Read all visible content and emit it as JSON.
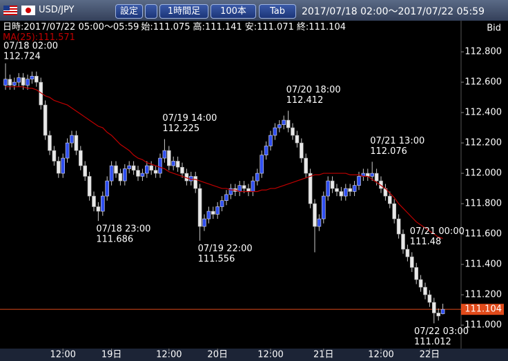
{
  "header": {
    "pair": "USD/JPY",
    "buttons": [
      "設定",
      "1時間足",
      "100本",
      "Tab"
    ],
    "range": "2017/07/18 02:00～2017/07/22 05:59"
  },
  "chart_data": {
    "type": "candlestick",
    "info": {
      "datetime": "日時:2017/07/22 05:00～05:59",
      "labels": [
        "始:",
        "高:",
        "安:",
        "終:"
      ]
    },
    "price_side": "Bid",
    "ma_label": "MA(25):",
    "ma_color": "#c00000",
    "up_color": "#2f4ff0",
    "down_color": "#e8e8e8",
    "open": [
      112.58,
      112.62,
      112.58,
      112.6,
      112.63,
      112.58,
      112.62,
      112.64,
      112.6,
      112.45,
      112.25,
      112.15,
      112.08,
      112.0,
      112.1,
      112.2,
      112.25,
      112.15,
      112.05,
      111.98,
      111.85,
      111.78,
      111.75,
      111.85,
      111.95,
      112.05,
      112.0,
      111.95,
      112.03,
      112.05,
      112.02,
      111.98,
      112.0,
      112.05,
      112.02,
      112.0,
      112.1,
      112.15,
      112.05,
      112.08,
      112.04,
      112.0,
      111.95,
      111.98,
      111.9,
      111.65,
      111.7,
      111.75,
      111.73,
      111.78,
      111.82,
      111.86,
      111.9,
      111.88,
      111.92,
      111.9,
      111.88,
      111.95,
      112.0,
      112.12,
      112.18,
      112.25,
      112.3,
      112.32,
      112.35,
      112.3,
      112.25,
      112.2,
      112.1,
      112.0,
      111.8,
      111.65,
      111.7,
      111.85,
      111.95,
      111.9,
      111.88,
      111.85,
      111.9,
      111.88,
      111.92,
      111.98,
      112.0,
      111.98,
      112.0,
      111.95,
      111.9,
      111.85,
      111.8,
      111.7,
      111.6,
      111.5,
      111.45,
      111.38,
      111.3,
      111.25,
      111.2,
      111.15,
      111.08,
      111.075
    ],
    "high": [
      112.724,
      112.65,
      112.63,
      112.66,
      112.66,
      112.65,
      112.67,
      112.67,
      112.63,
      112.48,
      112.28,
      112.18,
      112.11,
      112.13,
      112.23,
      112.28,
      112.28,
      112.18,
      112.08,
      112.01,
      111.88,
      111.81,
      111.88,
      111.98,
      112.08,
      112.08,
      112.03,
      112.06,
      112.08,
      112.08,
      112.05,
      112.03,
      112.08,
      112.08,
      112.05,
      112.13,
      112.225,
      112.18,
      112.11,
      112.11,
      112.07,
      112.03,
      112.01,
      112.01,
      111.93,
      111.73,
      111.78,
      111.78,
      111.81,
      111.85,
      111.89,
      111.93,
      111.93,
      111.95,
      111.95,
      111.93,
      111.98,
      112.03,
      112.15,
      112.21,
      112.28,
      112.33,
      112.35,
      112.38,
      112.412,
      112.33,
      112.28,
      112.23,
      112.13,
      112.03,
      111.83,
      111.73,
      111.88,
      111.98,
      111.98,
      111.93,
      111.91,
      111.93,
      111.93,
      111.95,
      112.01,
      112.03,
      112.03,
      112.076,
      112.03,
      111.98,
      111.93,
      111.88,
      111.83,
      111.73,
      111.63,
      111.53,
      111.48,
      111.41,
      111.33,
      111.28,
      111.23,
      111.18,
      111.11,
      111.141
    ],
    "low": [
      112.55,
      112.55,
      112.55,
      112.57,
      112.55,
      112.55,
      112.59,
      112.57,
      112.42,
      112.22,
      112.12,
      112.05,
      111.97,
      111.97,
      112.07,
      112.17,
      112.12,
      112.02,
      111.95,
      111.82,
      111.75,
      111.686,
      111.72,
      111.82,
      111.92,
      111.97,
      111.92,
      111.92,
      112.0,
      111.99,
      111.95,
      111.95,
      111.97,
      111.99,
      111.97,
      111.97,
      112.07,
      112.02,
      112.02,
      112.01,
      111.97,
      111.92,
      111.92,
      111.87,
      111.556,
      111.62,
      111.67,
      111.7,
      111.7,
      111.75,
      111.79,
      111.83,
      111.85,
      111.85,
      111.87,
      111.85,
      111.85,
      111.92,
      111.97,
      112.09,
      112.15,
      112.22,
      112.27,
      112.29,
      112.27,
      112.22,
      112.17,
      112.07,
      111.97,
      111.77,
      111.48,
      111.62,
      111.67,
      111.82,
      111.87,
      111.85,
      111.82,
      111.82,
      111.85,
      111.85,
      111.89,
      111.95,
      111.95,
      111.95,
      111.92,
      111.87,
      111.82,
      111.77,
      111.67,
      111.57,
      111.47,
      111.42,
      111.35,
      111.27,
      111.22,
      111.17,
      111.12,
      111.012,
      111.03,
      111.071
    ],
    "close": [
      112.62,
      112.58,
      112.6,
      112.63,
      112.58,
      112.62,
      112.64,
      112.6,
      112.45,
      112.25,
      112.15,
      112.08,
      112.0,
      112.1,
      112.2,
      112.25,
      112.15,
      112.05,
      111.98,
      111.85,
      111.78,
      111.75,
      111.85,
      111.95,
      112.05,
      112.0,
      111.95,
      112.03,
      112.05,
      112.02,
      111.98,
      112.0,
      112.05,
      112.02,
      112.0,
      112.1,
      112.15,
      112.05,
      112.08,
      112.04,
      112.0,
      111.95,
      111.98,
      111.9,
      111.65,
      111.7,
      111.75,
      111.73,
      111.78,
      111.82,
      111.86,
      111.9,
      111.88,
      111.92,
      111.9,
      111.88,
      111.95,
      112.0,
      112.12,
      112.18,
      112.25,
      112.3,
      112.32,
      112.35,
      112.3,
      112.25,
      112.2,
      112.1,
      112.0,
      111.8,
      111.65,
      111.7,
      111.85,
      111.95,
      111.9,
      111.88,
      111.85,
      111.9,
      111.88,
      111.92,
      111.98,
      112.0,
      111.98,
      112.0,
      111.95,
      111.9,
      111.85,
      111.8,
      111.7,
      111.6,
      111.5,
      111.45,
      111.38,
      111.3,
      111.25,
      111.2,
      111.15,
      111.08,
      111.06,
      111.104
    ],
    "ma": [
      112.57,
      112.57,
      112.57,
      112.57,
      112.57,
      112.56,
      112.56,
      112.55,
      112.53,
      112.51,
      112.5,
      112.48,
      112.47,
      112.46,
      112.45,
      112.43,
      112.41,
      112.39,
      112.37,
      112.35,
      112.33,
      112.31,
      112.3,
      112.27,
      112.25,
      112.22,
      112.19,
      112.17,
      112.15,
      112.12,
      112.1,
      112.09,
      112.07,
      112.06,
      112.05,
      112.04,
      112.03,
      112.01,
      112.0,
      111.99,
      111.98,
      111.97,
      111.96,
      111.96,
      111.95,
      111.94,
      111.93,
      111.92,
      111.91,
      111.9,
      111.9,
      111.89,
      111.89,
      111.88,
      111.88,
      111.88,
      111.88,
      111.88,
      111.89,
      111.89,
      111.9,
      111.9,
      111.91,
      111.92,
      111.93,
      111.94,
      111.95,
      111.96,
      111.97,
      111.98,
      111.99,
      111.99,
      112.0,
      112.0,
      112.0,
      112.0,
      112.0,
      112.0,
      111.99,
      111.99,
      111.99,
      111.98,
      111.98,
      111.96,
      111.94,
      111.92,
      111.9,
      111.87,
      111.84,
      111.8,
      111.77,
      111.74,
      111.71,
      111.68,
      111.66,
      111.64,
      111.62,
      111.6,
      111.58,
      111.571
    ],
    "current_price": 111.104,
    "current_color": "#e04a1a",
    "annotations": [
      {
        "time": "07/18 02:00",
        "value": 112.724
      },
      {
        "time": "07/18 23:00",
        "value": 111.686
      },
      {
        "time": "07/19 14:00",
        "value": 112.225
      },
      {
        "time": "07/19 22:00",
        "value": 111.556
      },
      {
        "time": "07/20 18:00",
        "value": 112.412
      },
      {
        "time": "07/21 00:00",
        "value": 111.48
      },
      {
        "time": "07/21 13:00",
        "value": 112.076
      },
      {
        "time": "07/22 03:00",
        "value": 111.012
      }
    ],
    "ylim": [
      110.882,
      113.005
    ],
    "yticks": [
      {
        "value": 111.0,
        "label": "111.000"
      },
      {
        "value": 111.2,
        "label": "111.200"
      },
      {
        "value": 111.4,
        "label": "111.400"
      },
      {
        "value": 111.6,
        "label": "111.600"
      },
      {
        "value": 111.8,
        "label": "111.800"
      },
      {
        "value": 112.0,
        "label": "112.000"
      },
      {
        "value": 112.2,
        "label": "112.200"
      },
      {
        "value": 112.4,
        "label": "112.400"
      },
      {
        "value": 112.6,
        "label": "112.600"
      },
      {
        "value": 112.8,
        "label": "112.800"
      }
    ],
    "xticks": [
      {
        "value": 13,
        "label": "12:00"
      },
      {
        "value": 24,
        "label": "19日"
      },
      {
        "value": 37,
        "label": "12:00"
      },
      {
        "value": 48,
        "label": "20日"
      },
      {
        "value": 60,
        "label": "12:00"
      },
      {
        "value": 72,
        "label": "21日"
      },
      {
        "value": 85,
        "label": "12:00"
      },
      {
        "value": 96,
        "label": "22日"
      }
    ]
  }
}
